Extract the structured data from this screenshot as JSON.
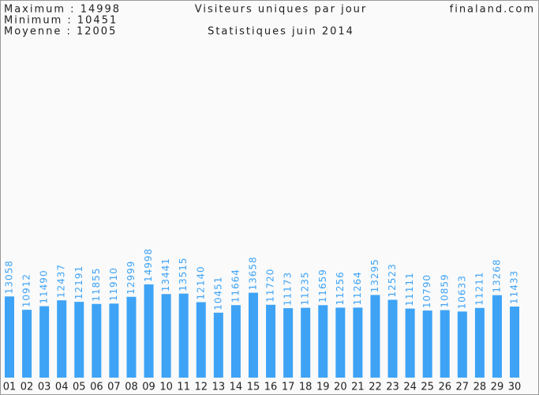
{
  "chart_data": {
    "type": "bar",
    "title": "Visiteurs uniques par jour",
    "subtitle": "Statistiques juin 2014",
    "site": "finaland.com",
    "annotations": [
      "Maximum : 14998",
      "Minimum : 10451",
      "Moyenne : 12005"
    ],
    "categories": [
      "01",
      "02",
      "03",
      "04",
      "05",
      "06",
      "07",
      "08",
      "09",
      "10",
      "11",
      "12",
      "13",
      "14",
      "15",
      "16",
      "17",
      "18",
      "19",
      "20",
      "21",
      "22",
      "23",
      "24",
      "25",
      "26",
      "27",
      "28",
      "29",
      "30"
    ],
    "values": [
      13058,
      10912,
      11490,
      12437,
      12191,
      11855,
      11910,
      12999,
      14998,
      13441,
      13515,
      12140,
      10451,
      11664,
      13658,
      11720,
      11173,
      11235,
      11659,
      11256,
      11264,
      13295,
      12523,
      11111,
      10790,
      10859,
      10633,
      11211,
      13268,
      11433
    ],
    "color": "#3ea3f5"
  }
}
